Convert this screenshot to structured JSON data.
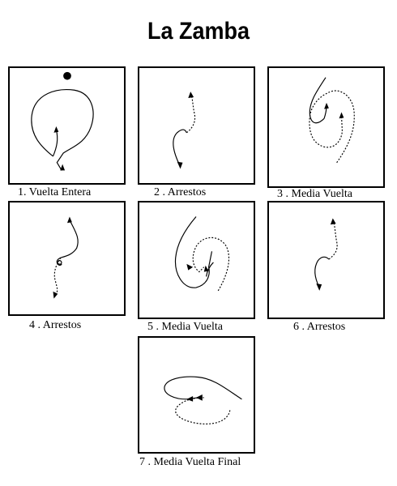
{
  "title": "La Zamba",
  "figures": [
    {
      "caption": "1.  Vuelta Entera"
    },
    {
      "caption": "2 . Arrestos"
    },
    {
      "caption": "3 . Media Vuelta"
    },
    {
      "caption": "4 . Arrestos"
    },
    {
      "caption": "5 . Media Vuelta"
    },
    {
      "caption": "6 . Arrestos"
    },
    {
      "caption": "7 . Media Vuelta Final"
    }
  ]
}
